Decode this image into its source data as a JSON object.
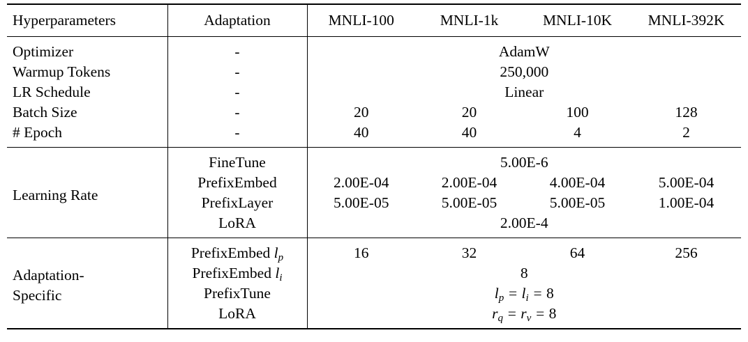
{
  "table": {
    "headers": [
      "Hyperparameters",
      "Adaptation",
      "MNLI-100",
      "MNLI-1k",
      "MNLI-10K",
      "MNLI-392K"
    ],
    "general": {
      "optimizer": {
        "name": "Optimizer",
        "adapt": "-",
        "value": "AdamW"
      },
      "warmup": {
        "name": "Warmup Tokens",
        "adapt": "-",
        "value": "250,000"
      },
      "schedule": {
        "name": "LR Schedule",
        "adapt": "-",
        "value": "Linear"
      },
      "batch": {
        "name": "Batch Size",
        "adapt": "-",
        "values": [
          "20",
          "20",
          "100",
          "128"
        ]
      },
      "epoch": {
        "name": "# Epoch",
        "adapt": "-",
        "values": [
          "40",
          "40",
          "4",
          "2"
        ]
      }
    },
    "learning_rate": {
      "group": "Learning Rate",
      "finetune": {
        "name": "FineTune",
        "value": "5.00E-6"
      },
      "prefixembed": {
        "name": "PrefixEmbed",
        "values": [
          "2.00E-04",
          "2.00E-04",
          "4.00E-04",
          "5.00E-04"
        ]
      },
      "prefixlayer": {
        "name": "PrefixLayer",
        "values": [
          "5.00E-05",
          "5.00E-05",
          "5.00E-05",
          "1.00E-04"
        ]
      },
      "lora": {
        "name": "LoRA",
        "value": "2.00E-4"
      }
    },
    "specific": {
      "group_line1": "Adaptation-",
      "group_line2": "Specific",
      "pe_lp": {
        "name": "PrefixEmbed",
        "sym": "l",
        "sub": "p",
        "values": [
          "16",
          "32",
          "64",
          "256"
        ]
      },
      "pe_li": {
        "name": "PrefixEmbed",
        "sym": "l",
        "sub": "i",
        "value": "8"
      },
      "prefixtune": {
        "name": "PrefixTune",
        "lhs_sym": "l",
        "lhs_sub": "p",
        "mid_sym": "l",
        "mid_sub": "i",
        "rhs": "8"
      },
      "lora": {
        "name": "LoRA",
        "lhs_sym": "r",
        "lhs_sub": "q",
        "mid_sym": "r",
        "mid_sub": "v",
        "rhs": "8"
      }
    }
  }
}
